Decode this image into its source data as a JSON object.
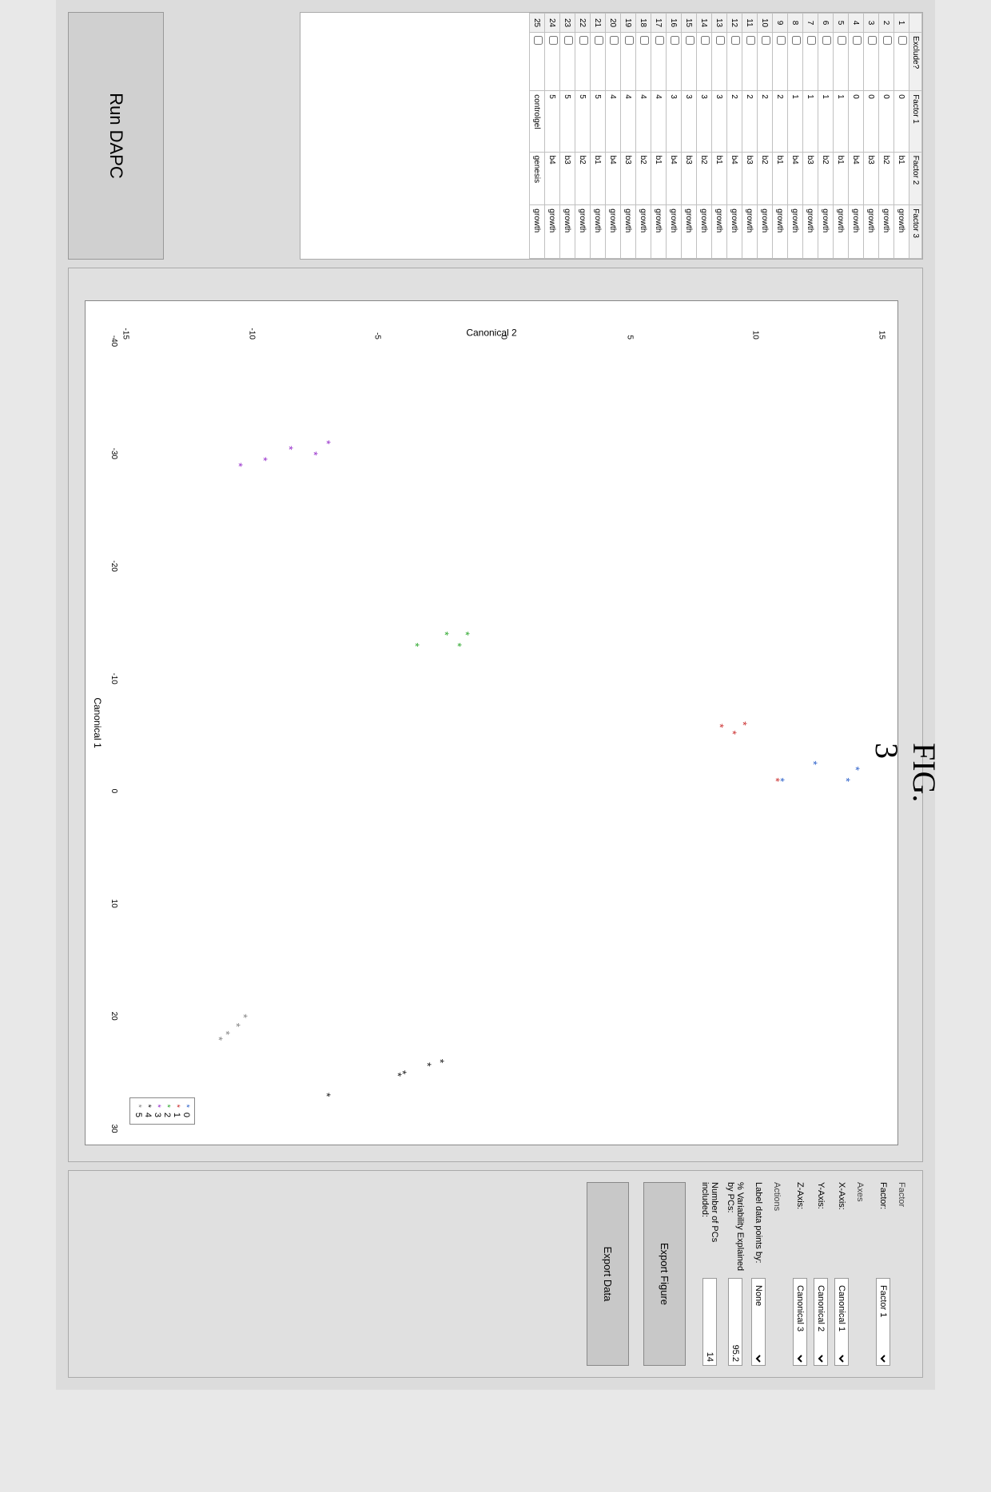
{
  "figure_label": "FIG. 3",
  "table": {
    "headers": [
      "",
      "Exclude?",
      "Factor 1",
      "Factor 2",
      "Factor 3"
    ],
    "rows": [
      [
        "1",
        false,
        "0",
        "b1",
        "growth"
      ],
      [
        "2",
        false,
        "0",
        "b2",
        "growth"
      ],
      [
        "3",
        false,
        "0",
        "b3",
        "growth"
      ],
      [
        "4",
        false,
        "0",
        "b4",
        "growth"
      ],
      [
        "5",
        false,
        "1",
        "b1",
        "growth"
      ],
      [
        "6",
        false,
        "1",
        "b2",
        "growth"
      ],
      [
        "7",
        false,
        "1",
        "b3",
        "growth"
      ],
      [
        "8",
        false,
        "1",
        "b4",
        "growth"
      ],
      [
        "9",
        false,
        "2",
        "b1",
        "growth"
      ],
      [
        "10",
        false,
        "2",
        "b2",
        "growth"
      ],
      [
        "11",
        false,
        "2",
        "b3",
        "growth"
      ],
      [
        "12",
        false,
        "2",
        "b4",
        "growth"
      ],
      [
        "13",
        false,
        "3",
        "b1",
        "growth"
      ],
      [
        "14",
        false,
        "3",
        "b2",
        "growth"
      ],
      [
        "15",
        false,
        "3",
        "b3",
        "growth"
      ],
      [
        "16",
        false,
        "3",
        "b4",
        "growth"
      ],
      [
        "17",
        false,
        "4",
        "b1",
        "growth"
      ],
      [
        "18",
        false,
        "4",
        "b2",
        "growth"
      ],
      [
        "19",
        false,
        "4",
        "b3",
        "growth"
      ],
      [
        "20",
        false,
        "4",
        "b4",
        "growth"
      ],
      [
        "21",
        false,
        "5",
        "b1",
        "growth"
      ],
      [
        "22",
        false,
        "5",
        "b2",
        "growth"
      ],
      [
        "23",
        false,
        "5",
        "b3",
        "growth"
      ],
      [
        "24",
        false,
        "5",
        "b4",
        "growth"
      ],
      [
        "25",
        false,
        "controlgel",
        "genesis",
        "growth"
      ]
    ]
  },
  "run_button": "Run DAPC",
  "chart": {
    "type": "scatter",
    "xlabel": "Canonical 1",
    "ylabel": "Canonical 2",
    "xlim": [
      -40,
      30
    ],
    "ylim": [
      -15,
      15
    ],
    "xticks": [
      -40,
      -30,
      -20,
      -10,
      0,
      10,
      20,
      30
    ],
    "yticks": [
      -15,
      -10,
      -5,
      0,
      5,
      10,
      15
    ],
    "background_color": "#ffffff",
    "border_color": "#888888",
    "series": [
      {
        "name": "0",
        "marker": "*",
        "color": "#3366cc",
        "points": [
          [
            -2,
            14
          ],
          [
            -1,
            13.6
          ],
          [
            -2.5,
            12.3
          ],
          [
            -1,
            11
          ]
        ]
      },
      {
        "name": "1",
        "marker": "*",
        "color": "#cc3333",
        "points": [
          [
            -6,
            9.5
          ],
          [
            -5.2,
            9.1
          ],
          [
            -5.8,
            8.6
          ],
          [
            -1,
            10.8
          ]
        ]
      },
      {
        "name": "2",
        "marker": "*",
        "color": "#33aa33",
        "points": [
          [
            -14,
            -1.5
          ],
          [
            -13,
            -1.8
          ],
          [
            -14,
            -2.3
          ],
          [
            -13,
            -3.5
          ]
        ]
      },
      {
        "name": "3",
        "marker": "*",
        "color": "#9933cc",
        "points": [
          [
            -31,
            -7
          ],
          [
            -30,
            -7.5
          ],
          [
            -30.5,
            -8.5
          ],
          [
            -29.5,
            -9.5
          ],
          [
            -29,
            -10.5
          ]
        ]
      },
      {
        "name": "4",
        "marker": "*",
        "color": "#222222",
        "points": [
          [
            24,
            -2.5
          ],
          [
            24.3,
            -3
          ],
          [
            25,
            -4
          ],
          [
            25.2,
            -4.2
          ],
          [
            27,
            -7
          ]
        ]
      },
      {
        "name": "5",
        "marker": "*",
        "color": "#888888",
        "points": [
          [
            20,
            -10.3
          ],
          [
            20.8,
            -10.6
          ],
          [
            21.5,
            -11
          ],
          [
            22,
            -11.3
          ]
        ]
      }
    ],
    "legend": [
      "0",
      "1",
      "2",
      "3",
      "4",
      "5"
    ]
  },
  "controls": {
    "factor_section": "Factor",
    "factor_label": "Factor:",
    "factor_value": "Factor 1",
    "axes_section": "Axes",
    "xaxis_label": "X-Axis:",
    "xaxis_value": "Canonical 1",
    "yaxis_label": "Y-Axis:",
    "yaxis_value": "Canonical 2",
    "zaxis_label": "Z-Axis:",
    "zaxis_value": "Canonical 3",
    "actions_section": "Actions",
    "label_points_label": "Label data points by:",
    "label_points_value": "None",
    "var_explained_label": "% Variability Explained by PCs:",
    "var_explained_value": "95.2",
    "num_pcs_label": "Number of PCs included:",
    "num_pcs_value": "14",
    "export_figure": "Export Figure",
    "export_data": "Export Data"
  }
}
